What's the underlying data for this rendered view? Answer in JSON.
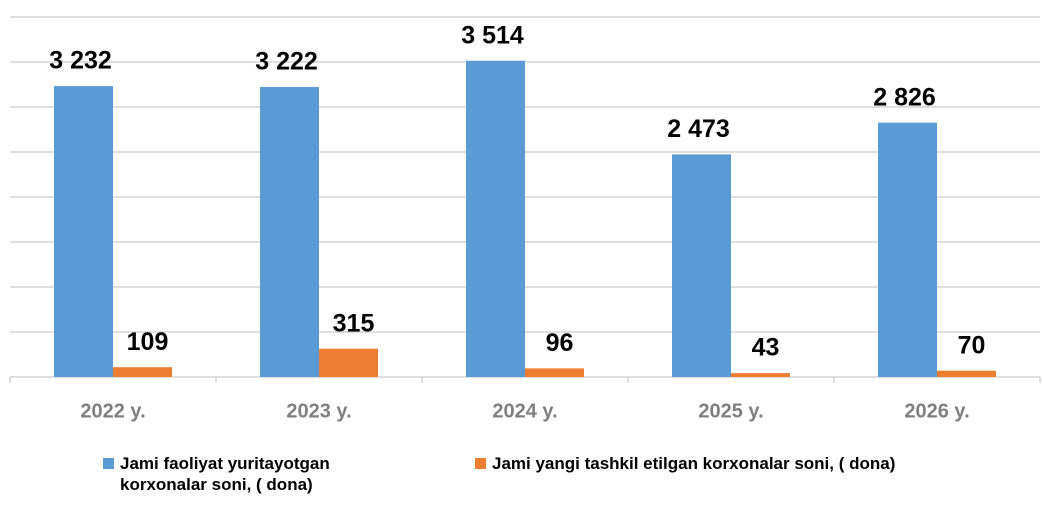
{
  "chart_data": {
    "type": "bar",
    "categories": [
      "2022 y.",
      "2023 y.",
      "2024 y.",
      "2025 y.",
      "2026 y."
    ],
    "series": [
      {
        "name": "Jami faoliyat yuritayotgan korxonalar soni, ( dona)",
        "color": "#5b9bd5",
        "values": [
          3232,
          3222,
          3514,
          2473,
          2826
        ],
        "value_labels": [
          "3 232",
          "3 222",
          "3 514",
          "2 473",
          "2 826"
        ]
      },
      {
        "name": "Jami yangi tashkil etilgan korxonalar soni, ( dona)",
        "color": "#ed7d31",
        "values": [
          109,
          315,
          96,
          43,
          70
        ],
        "value_labels": [
          "109",
          "315",
          "96",
          "43",
          "70"
        ]
      }
    ],
    "ylim": [
      0,
      4000
    ],
    "yticks": [
      0,
      500,
      1000,
      1500,
      2000,
      2500,
      3000,
      3500,
      4000
    ],
    "grid": true,
    "legend": "bottom"
  }
}
